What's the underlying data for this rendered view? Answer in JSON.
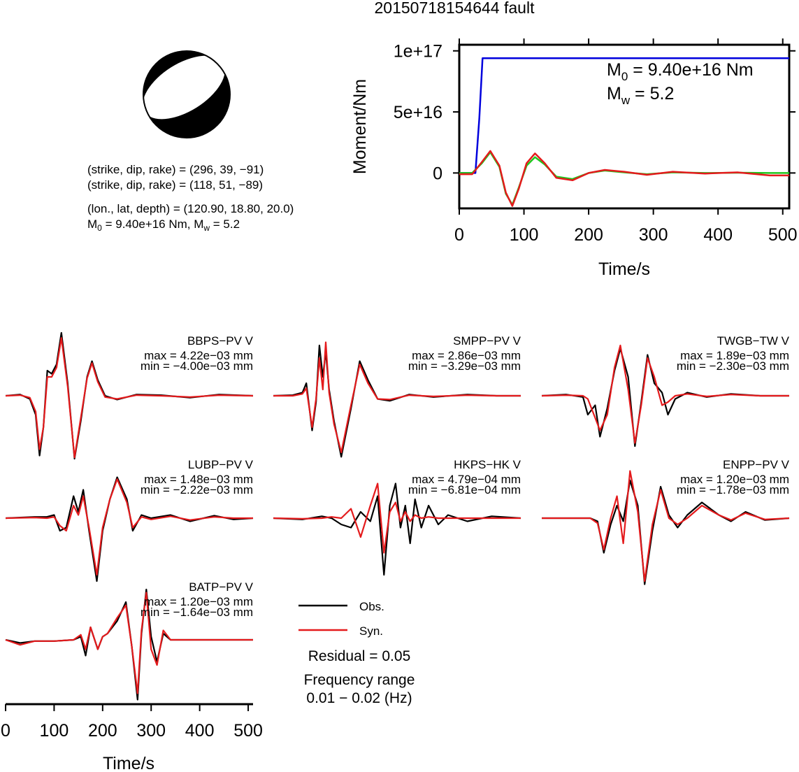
{
  "title": "20150718154644 fault",
  "colors": {
    "obs": "#000000",
    "syn": "#e41a1c",
    "moment": "#0000dd",
    "stf": "#1ec81e"
  },
  "mechanism": {
    "plane1": "(strike, dip, rake) = (296, 39, −91)",
    "plane2": "(strike, dip, rake) = (118, 51, −89)",
    "location": "(lon., lat, depth) = (120.90, 18.80, 20.0)",
    "m0_prefix": "M",
    "m0_sub": "0",
    "m0_value": " = 9.40e+16 Nm, M",
    "mw_sub": "w",
    "mw_value": " = 5.2"
  },
  "moment_panel": {
    "m0_main": "M",
    "m0_sub": "0",
    "m0_text": " = 9.40e+16 Nm",
    "mw_main": "M",
    "mw_sub": "w",
    "mw_text": " = 5.2"
  },
  "chart_data": [
    {
      "type": "line",
      "xlabel": "Time/s",
      "ylabel": "Moment/Nm",
      "xlim": [
        0,
        510
      ],
      "ylim": [
        -2.9e+16,
        1.05e+17
      ],
      "xticks": [
        0,
        100,
        200,
        300,
        400,
        500
      ],
      "xtick_labels": [
        "0",
        "100",
        "200",
        "300",
        "400",
        "500"
      ],
      "yticks": [
        0,
        5e+16,
        1e+17
      ],
      "ytick_labels": [
        "0",
        "5e+16",
        "1e+17"
      ],
      "series": [
        {
          "color": "#0000dd",
          "x": [
            0,
            25,
            31,
            36,
            510
          ],
          "y": [
            0,
            0,
            4.5e+16,
            9.4e+16,
            9.4e+16
          ]
        },
        {
          "color": "#1ec81e",
          "x": [
            0,
            20,
            35,
            48,
            62,
            72,
            82,
            92,
            104,
            117,
            132,
            150,
            175,
            200,
            225,
            255,
            290,
            330,
            380,
            430,
            480,
            510
          ],
          "y": [
            0,
            0,
            8000000000000000.0,
            1.7e+16,
            5000000000000000.0,
            -1.7e+16,
            -2.6e+16,
            -1.2e+16,
            6000000000000000.0,
            1.3e+16,
            7000000000000000.0,
            -3000000000000000.0,
            -5000000000000000.0,
            0,
            2000000000000000.0,
            500000000000000.0,
            -1000000000000000.0,
            500000000000000.0,
            0,
            200000000000000.0,
            0,
            0
          ]
        },
        {
          "color": "#e41a1c",
          "x": [
            0,
            20,
            35,
            48,
            62,
            72,
            82,
            92,
            104,
            117,
            132,
            150,
            175,
            200,
            225,
            255,
            290,
            330,
            380,
            430,
            480,
            510
          ],
          "y": [
            -1000000000000000.0,
            -1000000000000000.0,
            9000000000000000.0,
            1.8e+16,
            6000000000000000.0,
            -1.6e+16,
            -2.7e+16,
            -1.3e+16,
            8000000000000000.0,
            1.6e+16,
            8000000000000000.0,
            -4000000000000000.0,
            -6000000000000000.0,
            0,
            2500000000000000.0,
            1000000000000000.0,
            -1500000000000000.0,
            1000000000000000.0,
            -500000000000000.0,
            500000000000000.0,
            -2000000000000000.0,
            -2000000000000000.0
          ]
        }
      ]
    },
    {
      "type": "line",
      "xlabel": "Time/s",
      "xlim": [
        0,
        510
      ],
      "xticks": [
        0,
        100,
        200,
        300,
        400,
        500
      ],
      "xtick_labels": [
        "0",
        "100",
        "200",
        "300",
        "400",
        "500"
      ],
      "stations": [
        {
          "name": "BBPS−PV V",
          "max": "max = 4.22e−03 mm",
          "min": "min = −4.00e−03 mm",
          "t": [
            0,
            30,
            50,
            62,
            70,
            78,
            86,
            95,
            105,
            115,
            128,
            142,
            155,
            168,
            178,
            190,
            205,
            230,
            270,
            320,
            380,
            440,
            510
          ],
          "obs": [
            0,
            0.02,
            -0.05,
            -0.3,
            -0.95,
            -0.5,
            0.4,
            0.35,
            0.5,
            1.0,
            0.2,
            -1.0,
            -0.4,
            0.3,
            0.55,
            0.25,
            0.0,
            -0.06,
            0.02,
            0.01,
            -0.03,
            0.02,
            0
          ],
          "syn": [
            0,
            0.01,
            -0.03,
            -0.25,
            -0.85,
            -0.5,
            0.3,
            0.3,
            0.45,
            0.92,
            0.15,
            -0.98,
            -0.35,
            0.28,
            0.52,
            0.22,
            -0.02,
            -0.05,
            0.01,
            0.0,
            -0.02,
            0.01,
            0
          ]
        },
        {
          "name": "SMPP−PV V",
          "max": "max = 2.86e−03 mm",
          "min": "min = −3.29e−03 mm",
          "t": [
            0,
            40,
            60,
            68,
            80,
            88,
            95,
            102,
            108,
            115,
            125,
            140,
            160,
            178,
            195,
            215,
            240,
            280,
            330,
            400,
            460,
            510
          ],
          "obs": [
            0,
            0.01,
            0.05,
            0.2,
            -0.55,
            -0.1,
            0.8,
            0.3,
            0.7,
            0.1,
            -0.4,
            -0.97,
            -0.2,
            0.55,
            0.25,
            -0.05,
            -0.08,
            0.02,
            -0.02,
            0.02,
            0,
            0
          ],
          "syn": [
            0,
            0.0,
            0.03,
            0.12,
            -0.5,
            -0.05,
            0.6,
            0.1,
            0.85,
            0.05,
            -0.45,
            -0.9,
            -0.15,
            0.5,
            0.2,
            -0.05,
            -0.06,
            0.01,
            -0.01,
            0.01,
            0,
            0
          ]
        },
        {
          "name": "TWGB−TW V",
          "max": "max = 1.89e−03 mm",
          "min": "min = −2.30e−03 mm",
          "t": [
            0,
            50,
            85,
            95,
            110,
            120,
            135,
            150,
            162,
            178,
            192,
            205,
            218,
            232,
            248,
            260,
            275,
            300,
            340,
            390,
            450,
            510
          ],
          "obs": [
            0,
            0.02,
            -0.02,
            -0.3,
            -0.15,
            -0.65,
            -0.2,
            0.4,
            0.75,
            0.3,
            -0.8,
            -0.1,
            0.65,
            0.2,
            0.05,
            -0.3,
            -0.05,
            0.05,
            -0.02,
            0.03,
            0,
            0
          ],
          "syn": [
            0,
            0.01,
            0,
            -0.05,
            -0.35,
            -0.55,
            -0.3,
            0.45,
            0.8,
            0.1,
            -0.75,
            -0.15,
            0.6,
            0.3,
            -0.15,
            -0.1,
            0.0,
            0.03,
            -0.01,
            0.02,
            0,
            0
          ]
        },
        {
          "name": "LUBP−PV V",
          "max": "max = 1.48e−03 mm",
          "min": "min = −2.22e−03 mm",
          "t": [
            0,
            60,
            85,
            100,
            112,
            125,
            140,
            150,
            160,
            172,
            188,
            200,
            215,
            230,
            250,
            262,
            280,
            300,
            340,
            380,
            430,
            470,
            510
          ],
          "obs": [
            0,
            0.02,
            0.02,
            0.05,
            -0.2,
            -0.15,
            0.35,
            0.1,
            0.45,
            -0.2,
            -1.0,
            -0.2,
            0.3,
            0.65,
            0.3,
            -0.2,
            0.05,
            0.0,
            0.05,
            -0.05,
            0.04,
            -0.02,
            0
          ],
          "syn": [
            0,
            0.01,
            0.0,
            0.02,
            -0.12,
            -0.2,
            0.2,
            0.05,
            0.35,
            -0.15,
            -0.9,
            -0.15,
            0.3,
            0.62,
            0.25,
            -0.15,
            0.02,
            -0.02,
            0.03,
            -0.03,
            0.02,
            0,
            0
          ]
        },
        {
          "name": "HKPS−HK V",
          "max": "max = 4.79e−04 mm",
          "min": "min = −6.81e−04 mm",
          "t": [
            0,
            60,
            100,
            120,
            140,
            160,
            180,
            200,
            215,
            228,
            240,
            252,
            262,
            272,
            282,
            292,
            305,
            320,
            340,
            360,
            400,
            450,
            510
          ],
          "obs": [
            0,
            -0.02,
            0.03,
            0.0,
            -0.1,
            -0.15,
            0.1,
            -0.05,
            0.35,
            -0.9,
            0.2,
            0.55,
            -0.15,
            0.2,
            -0.4,
            0.3,
            -0.15,
            0.2,
            -0.1,
            0.05,
            -0.05,
            0.03,
            0
          ],
          "syn": [
            0,
            -0.01,
            0.0,
            0.02,
            0.0,
            0.15,
            -0.3,
            0.2,
            0.55,
            -0.55,
            0.1,
            0.25,
            -0.05,
            0.1,
            -0.05,
            0.05,
            0.0,
            0.02,
            0.0,
            0.0,
            0,
            0,
            0
          ]
        },
        {
          "name": "ENPP−PV V",
          "max": "max = 1.20e−03 mm",
          "min": "min = −1.78e−03 mm",
          "t": [
            0,
            60,
            100,
            115,
            128,
            142,
            155,
            168,
            182,
            198,
            212,
            228,
            245,
            262,
            280,
            300,
            330,
            365,
            390,
            420,
            460,
            510
          ],
          "obs": [
            0,
            0.0,
            0.0,
            -0.05,
            -0.55,
            -0.1,
            0.2,
            -0.05,
            0.6,
            0.2,
            -1.05,
            -0.2,
            0.5,
            0.05,
            -0.15,
            0.05,
            0.25,
            0.05,
            -0.05,
            0.1,
            -0.03,
            0
          ],
          "syn": [
            0,
            0.0,
            0.0,
            -0.08,
            -0.5,
            0.0,
            0.35,
            -0.4,
            0.75,
            0.1,
            -1.0,
            -0.1,
            0.45,
            0.0,
            -0.1,
            0.0,
            0.2,
            0.05,
            -0.03,
            0.08,
            -0.02,
            0
          ]
        },
        {
          "name": "BATP−PV V",
          "max": "max = 1.20e−03 mm",
          "min": "min = −1.64e−03 mm",
          "t": [
            0,
            30,
            60,
            100,
            140,
            155,
            165,
            175,
            190,
            200,
            210,
            230,
            248,
            260,
            272,
            280,
            290,
            300,
            312,
            325,
            340,
            350,
            510
          ],
          "obs": [
            0,
            -0.05,
            -0.02,
            -0.02,
            0.0,
            0.05,
            -0.25,
            0.2,
            -0.15,
            0.05,
            0.1,
            0.3,
            0.6,
            -0.1,
            -0.95,
            0.1,
            0.8,
            0.05,
            -0.35,
            0.1,
            0.0,
            0.0,
            0
          ],
          "syn": [
            0,
            -0.08,
            -0.02,
            -0.02,
            0.0,
            0.08,
            -0.15,
            0.2,
            -0.15,
            0.05,
            0.1,
            0.35,
            0.55,
            -0.1,
            -0.85,
            0.15,
            0.75,
            -0.15,
            -0.4,
            0.15,
            0.0,
            0.0,
            0
          ]
        }
      ]
    }
  ],
  "legend": {
    "obs_label": "Obs.",
    "syn_label": "Syn."
  },
  "residual": "Residual = 0.05",
  "freq_label": "Frequency range",
  "freq_value": "0.01 − 0.02 (Hz)"
}
